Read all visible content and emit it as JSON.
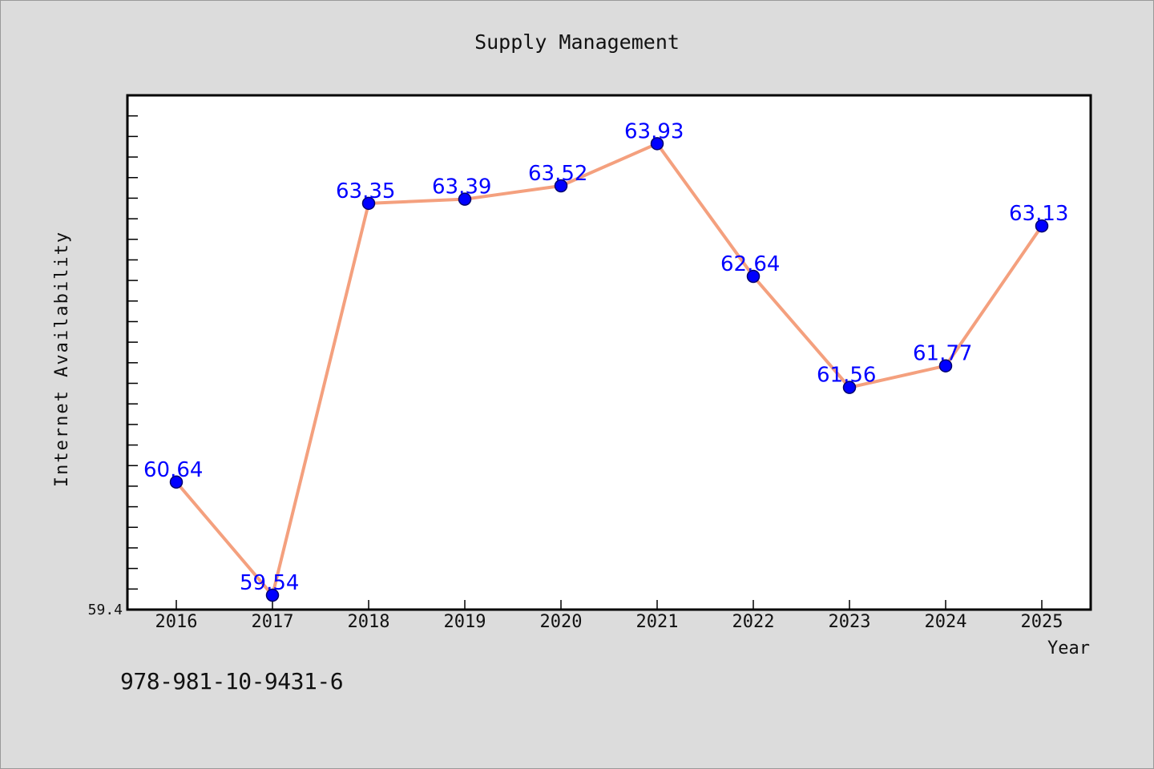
{
  "chart_data": {
    "type": "line",
    "title": "Supply Management",
    "xlabel": "Year",
    "ylabel": "Internet Availability",
    "categories": [
      "2016",
      "2017",
      "2018",
      "2019",
      "2020",
      "2021",
      "2022",
      "2023",
      "2024",
      "2025"
    ],
    "series": [
      {
        "values": [
          60.64,
          59.54,
          63.35,
          63.39,
          63.52,
          63.93,
          62.64,
          61.56,
          61.77,
          63.13
        ]
      }
    ],
    "data_labels": [
      "60.64",
      "59.54",
      "63.35",
      "63.39",
      "63.52",
      "63.93",
      "62.64",
      "61.56",
      "61.77",
      "63.13"
    ],
    "ylim": [
      59.4,
      64.4
    ],
    "y_tick_label": "59.4",
    "grid": false,
    "legend": "none",
    "colors": {
      "line": "#f4a07e",
      "marker": "#0000ff",
      "marker_edge": "#00006b",
      "data_label": "#0000ff",
      "plot_background": "#ffffff",
      "figure_background": "#dcdcdc"
    }
  },
  "footer": {
    "code": "978-981-10-9431-6"
  }
}
